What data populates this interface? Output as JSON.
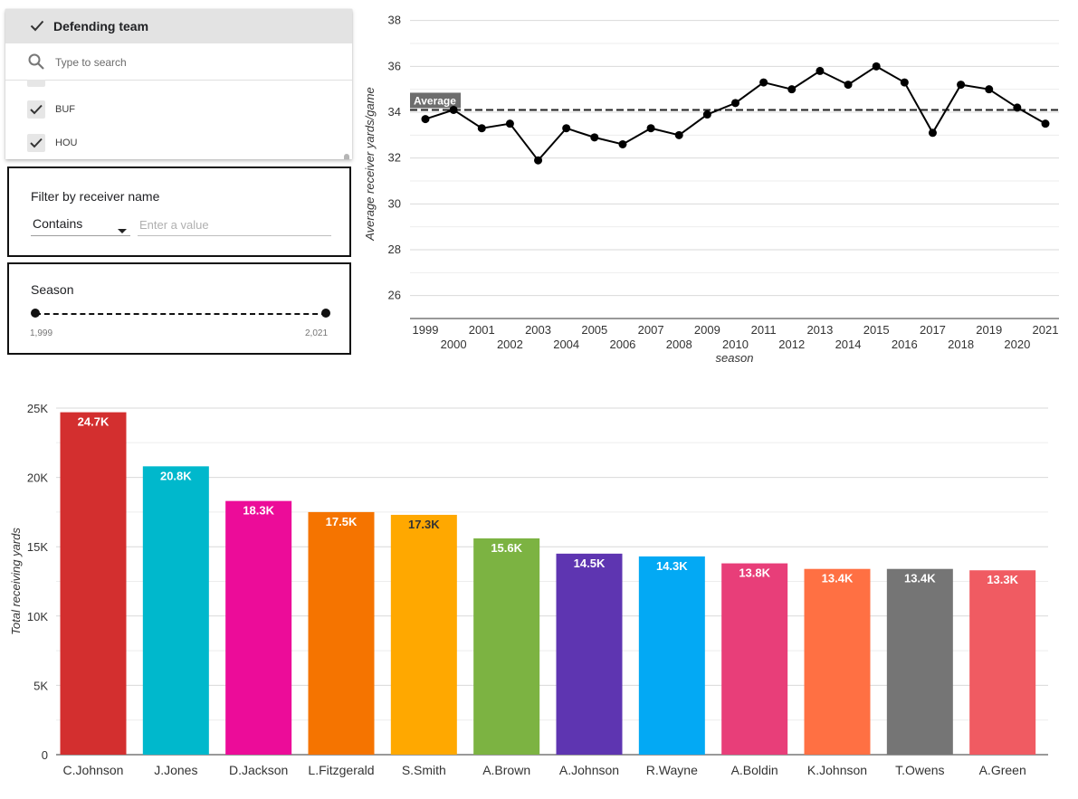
{
  "team_filter": {
    "header_label": "Defending team",
    "search_placeholder": "Type to search",
    "items": [
      {
        "label": "BUF",
        "checked": true
      },
      {
        "label": "HOU",
        "checked": true
      }
    ]
  },
  "receiver_filter": {
    "title": "Filter by receiver name",
    "operator": "Contains",
    "value_placeholder": "Enter a value"
  },
  "season_filter": {
    "title": "Season",
    "min_label": "1,999",
    "max_label": "2,021"
  },
  "chart_data": [
    {
      "type": "line",
      "title": "",
      "xlabel": "season",
      "ylabel": "Average receiver yards/game",
      "x": [
        1999,
        2000,
        2001,
        2002,
        2003,
        2004,
        2005,
        2006,
        2007,
        2008,
        2009,
        2010,
        2011,
        2012,
        2013,
        2014,
        2015,
        2016,
        2017,
        2018,
        2019,
        2020,
        2021
      ],
      "series": [
        {
          "values": [
            33.7,
            34.1,
            33.3,
            33.5,
            31.9,
            33.3,
            32.9,
            32.6,
            33.3,
            33.0,
            33.9,
            34.4,
            35.3,
            35.0,
            35.8,
            35.2,
            36.0,
            35.3,
            33.1,
            35.2,
            35.0,
            34.2,
            33.5
          ]
        }
      ],
      "reference_line": {
        "label": "Average",
        "value": 34.1,
        "style": "dashed"
      },
      "ylim": [
        25,
        38.5
      ],
      "yticks": [
        26,
        28,
        30,
        32,
        34,
        36,
        38
      ],
      "grid": true
    },
    {
      "type": "bar",
      "title": "",
      "xlabel": "",
      "ylabel": "Total receiving yards",
      "categories": [
        "C.Johnson",
        "J.Jones",
        "D.Jackson",
        "L.Fitzgerald",
        "S.Smith",
        "A.Brown",
        "A.Johnson",
        "R.Wayne",
        "A.Boldin",
        "K.Johnson",
        "T.Owens",
        "A.Green"
      ],
      "values": [
        24700,
        20800,
        18300,
        17500,
        17300,
        15600,
        14500,
        14300,
        13800,
        13400,
        13400,
        13300
      ],
      "data_labels": [
        "24.7K",
        "20.8K",
        "18.3K",
        "17.5K",
        "17.3K",
        "15.6K",
        "14.5K",
        "14.3K",
        "13.8K",
        "13.4K",
        "13.4K",
        "13.3K"
      ],
      "colors": [
        "#d32f2f",
        "#00b8cc",
        "#ec0c99",
        "#f57400",
        "#ffa800",
        "#7cb342",
        "#5e35b1",
        "#03a9f4",
        "#e83e79",
        "#ff7043",
        "#757575",
        "#f05b62"
      ],
      "label_colors": [
        "#ffffff",
        "#ffffff",
        "#ffffff",
        "#ffffff",
        "#333333",
        "#ffffff",
        "#ffffff",
        "#ffffff",
        "#ffffff",
        "#ffffff",
        "#ffffff",
        "#ffffff"
      ],
      "ylim": [
        0,
        25000
      ],
      "yticks": [
        0,
        5000,
        10000,
        15000,
        20000,
        25000
      ],
      "ytick_labels": [
        "0",
        "5K",
        "10K",
        "15K",
        "20K",
        "25K"
      ],
      "grid": true
    }
  ]
}
